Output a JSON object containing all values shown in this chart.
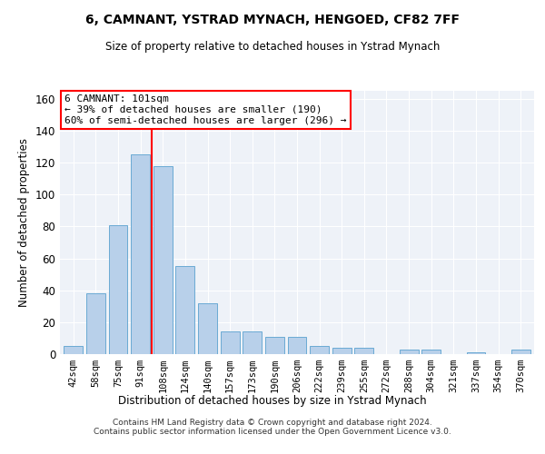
{
  "title1": "6, CAMNANT, YSTRAD MYNACH, HENGOED, CF82 7FF",
  "title2": "Size of property relative to detached houses in Ystrad Mynach",
  "xlabel": "Distribution of detached houses by size in Ystrad Mynach",
  "ylabel": "Number of detached properties",
  "categories": [
    "42sqm",
    "58sqm",
    "75sqm",
    "91sqm",
    "108sqm",
    "124sqm",
    "140sqm",
    "157sqm",
    "173sqm",
    "190sqm",
    "206sqm",
    "222sqm",
    "239sqm",
    "255sqm",
    "272sqm",
    "288sqm",
    "304sqm",
    "321sqm",
    "337sqm",
    "354sqm",
    "370sqm"
  ],
  "values": [
    5,
    38,
    81,
    125,
    118,
    55,
    32,
    14,
    14,
    11,
    11,
    5,
    4,
    4,
    0,
    3,
    3,
    0,
    1,
    0,
    3
  ],
  "bar_color": "#b8d0ea",
  "bar_edge_color": "#6aaad4",
  "ylim": [
    0,
    165
  ],
  "yticks": [
    0,
    20,
    40,
    60,
    80,
    100,
    120,
    140,
    160
  ],
  "red_line_x": 3.5,
  "annotation_line1": "6 CAMNANT: 101sqm",
  "annotation_line2": "← 39% of detached houses are smaller (190)",
  "annotation_line3": "60% of semi-detached houses are larger (296) →",
  "footer": "Contains HM Land Registry data © Crown copyright and database right 2024.\nContains public sector information licensed under the Open Government Licence v3.0.",
  "background_color": "#eef2f8"
}
